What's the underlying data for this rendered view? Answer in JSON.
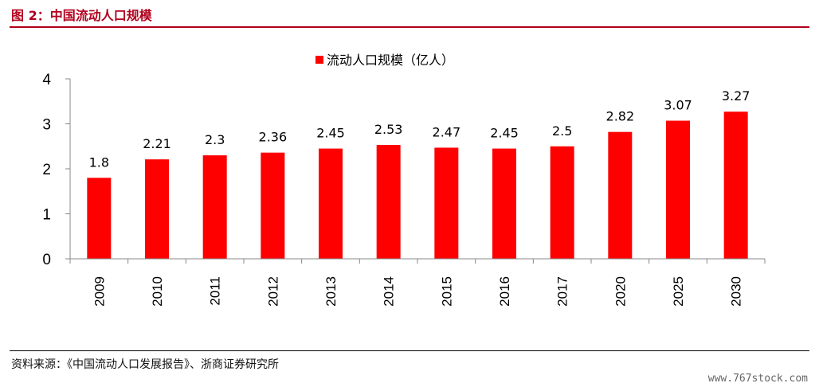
{
  "header": {
    "figure_title": "图 2：中国流动人口规模"
  },
  "footer": {
    "source": "资料来源：《中国流动人口发展报告》、浙商证券研究所",
    "watermark": "www.767stock.com"
  },
  "colors": {
    "bar": "#ff0000",
    "title": "#b2001d"
  },
  "chart_data": {
    "type": "bar",
    "categories": [
      "2009",
      "2010",
      "2011",
      "2012",
      "2013",
      "2014",
      "2015",
      "2016",
      "2017",
      "2020",
      "2025",
      "2030"
    ],
    "series": [
      {
        "name": "流动人口规模（亿人）",
        "values": [
          1.8,
          2.21,
          2.3,
          2.36,
          2.45,
          2.53,
          2.47,
          2.45,
          2.5,
          2.82,
          3.07,
          3.27
        ],
        "labels": [
          "1.8",
          "2.21",
          "2.3",
          "2.36",
          "2.45",
          "2.53",
          "2.47",
          "2.45",
          "2.5",
          "2.82",
          "3.07",
          "3.27"
        ]
      }
    ],
    "yticks": [
      "0",
      "1",
      "2",
      "3",
      "4"
    ],
    "ylim": [
      0,
      4
    ],
    "grid": false,
    "legend_position": "top-center"
  }
}
